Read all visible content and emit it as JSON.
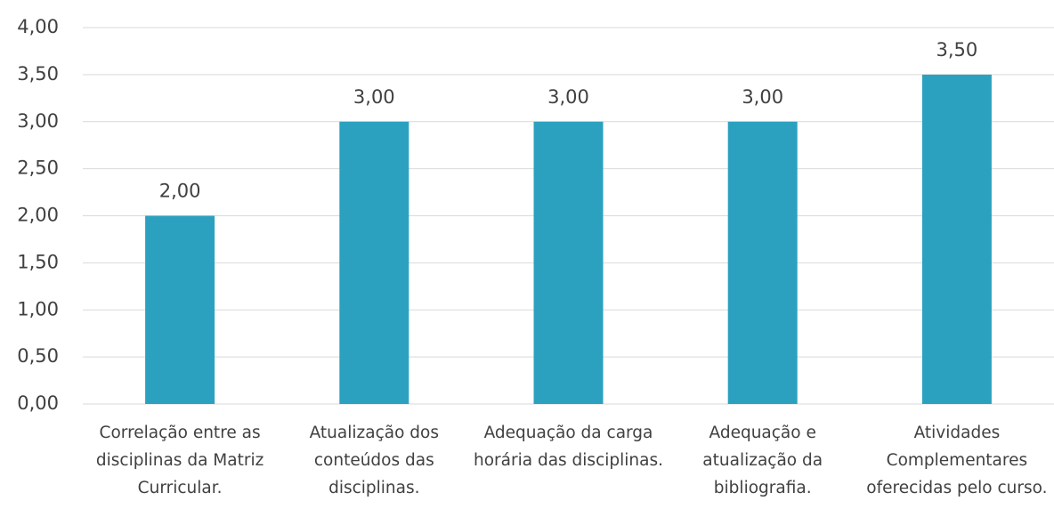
{
  "chart_data": {
    "type": "bar",
    "categories": [
      "Correlação entre as disciplinas da Matriz Curricular.",
      "Atualização dos conteúdos das disciplinas.",
      "Adequação da carga horária das disciplinas.",
      "Adequação e atualização da bibliografia.",
      "Atividades Complementares oferecidas pelo curso."
    ],
    "values": [
      2,
      3,
      3,
      3,
      3.5
    ],
    "value_labels": [
      "2,00",
      "3,00",
      "3,00",
      "3,00",
      "3,50"
    ],
    "color": "#2ca1bf",
    "ylim": [
      0,
      4
    ],
    "yticks": [
      {
        "value": 0,
        "label": "0,00"
      },
      {
        "value": 0.5,
        "label": "0,50"
      },
      {
        "value": 1,
        "label": "1,00"
      },
      {
        "value": 1.5,
        "label": "1,50"
      },
      {
        "value": 2,
        "label": "2,00"
      },
      {
        "value": 2.5,
        "label": "2,50"
      },
      {
        "value": 3,
        "label": "3,00"
      },
      {
        "value": 3.5,
        "label": "3,50"
      },
      {
        "value": 4,
        "label": "4,00"
      }
    ],
    "grid": true
  }
}
